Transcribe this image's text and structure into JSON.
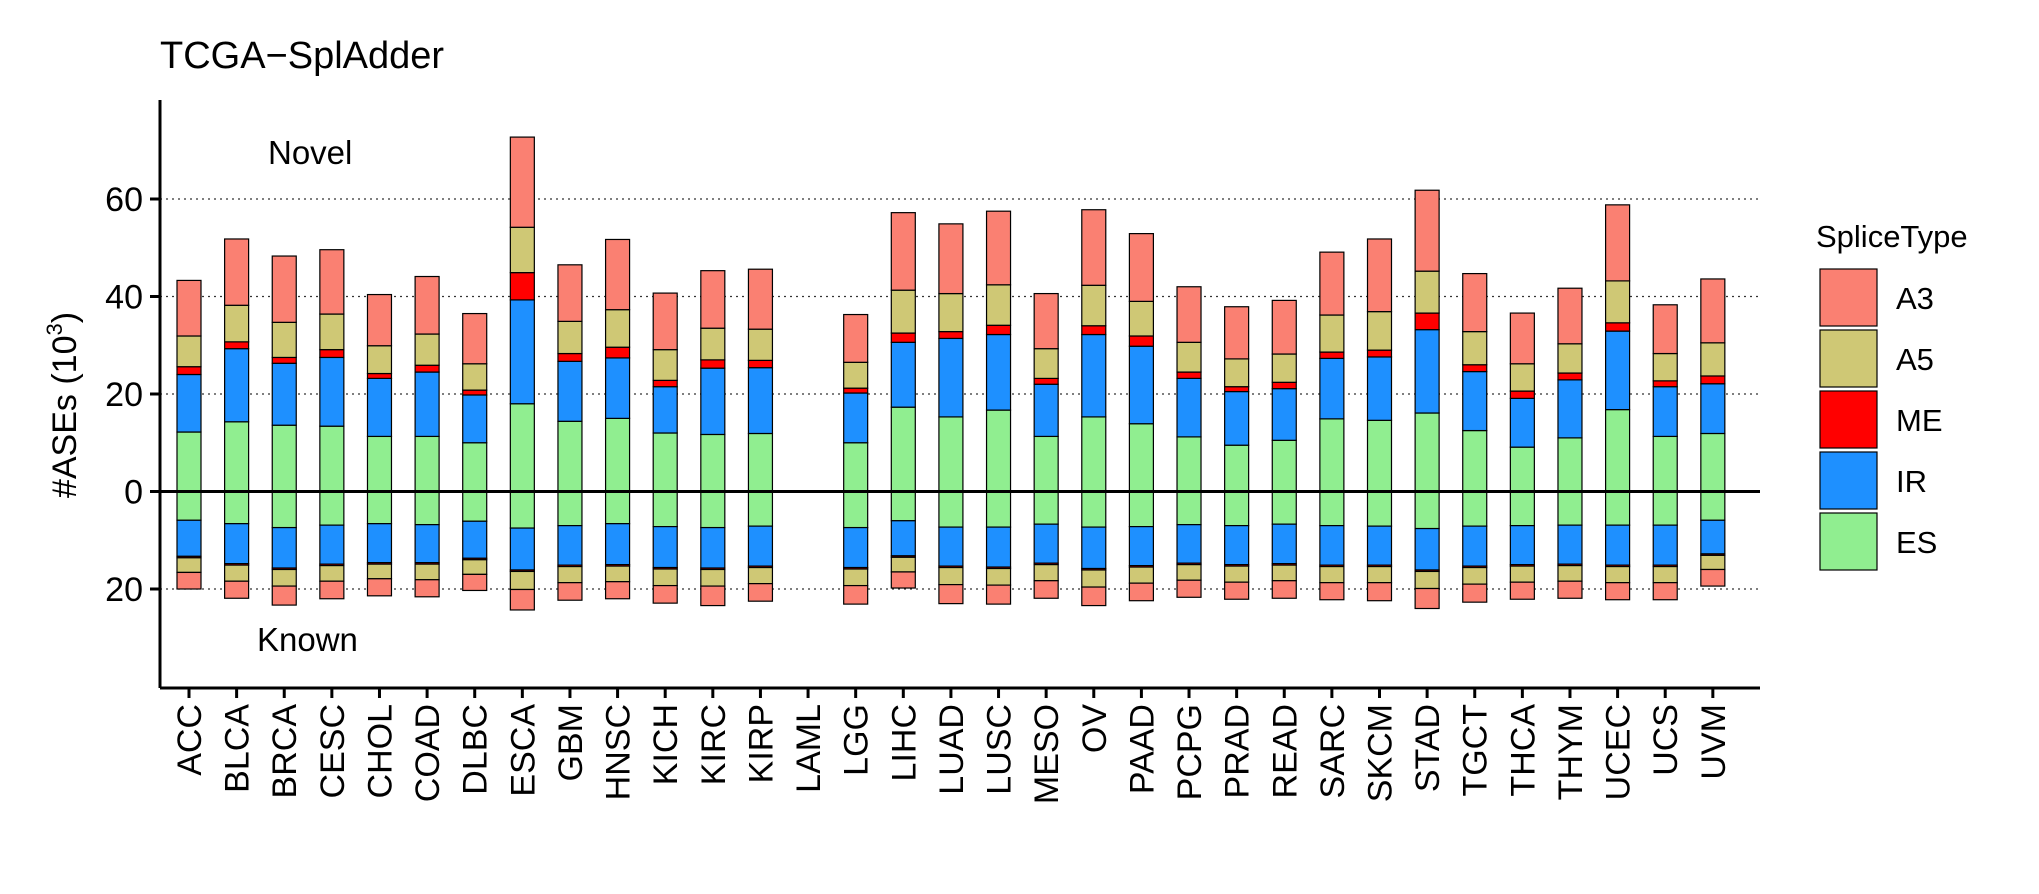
{
  "chart_data": {
    "type": "bar",
    "subtype": "stacked-diverging",
    "title": "TCGA−SplAdder",
    "ylabel": "#ASEs (10³)",
    "ylabel_base": "#ASEs (10",
    "ylabel_exp": "3",
    "ylabel_close": ")",
    "ylim": [
      -40,
      80
    ],
    "ytick_values": [
      -20,
      0,
      20,
      40,
      60
    ],
    "ytick_labels": [
      "20",
      "0",
      "20",
      "40",
      "60"
    ],
    "grid": "horizontal dotted at y ticks",
    "annotations": {
      "top": "Novel",
      "bottom": "Known"
    },
    "legend": {
      "title": "SpliceType",
      "position": "right",
      "items": [
        {
          "name": "A3",
          "color": "#FA8072"
        },
        {
          "name": "A5",
          "color": "#CFC875"
        },
        {
          "name": "ME",
          "color": "#FF0000"
        },
        {
          "name": "IR",
          "color": "#1E90FF"
        },
        {
          "name": "ES",
          "color": "#90EE90"
        }
      ]
    },
    "stack_order_from_zero": [
      "ES",
      "IR",
      "ME",
      "A5",
      "A3"
    ],
    "categories": [
      "ACC",
      "BLCA",
      "BRCA",
      "CESC",
      "CHOL",
      "COAD",
      "DLBC",
      "ESCA",
      "GBM",
      "HNSC",
      "KICH",
      "KIRC",
      "KIRP",
      "LAML",
      "LGG",
      "LIHC",
      "LUAD",
      "LUSC",
      "MESO",
      "OV",
      "PAAD",
      "PCPG",
      "PRAD",
      "READ",
      "SARC",
      "SKCM",
      "STAD",
      "TGCT",
      "THCA",
      "THYM",
      "UCEC",
      "UCS",
      "UVM"
    ],
    "novel_series": [
      {
        "name": "ES",
        "values": [
          12.2,
          14.3,
          13.6,
          13.4,
          11.3,
          11.3,
          10.0,
          18.0,
          14.4,
          15.0,
          12.0,
          11.7,
          11.9,
          0,
          10.0,
          17.3,
          15.3,
          16.7,
          11.3,
          15.3,
          13.9,
          11.2,
          9.5,
          10.5,
          14.9,
          14.6,
          16.1,
          12.5,
          9.1,
          11.0,
          16.8,
          11.3,
          11.9
        ]
      },
      {
        "name": "IR",
        "values": [
          11.8,
          15.0,
          12.7,
          14.1,
          11.9,
          13.2,
          9.8,
          21.3,
          12.3,
          12.4,
          9.5,
          13.6,
          13.5,
          0,
          10.2,
          13.3,
          16.1,
          15.5,
          10.7,
          16.9,
          15.9,
          12.0,
          11.0,
          10.6,
          12.4,
          13.0,
          17.1,
          12.1,
          10.0,
          11.9,
          16.1,
          10.2,
          10.2
        ]
      },
      {
        "name": "ME",
        "values": [
          1.6,
          1.4,
          1.2,
          1.6,
          1.0,
          1.4,
          1.0,
          5.6,
          1.6,
          2.2,
          1.3,
          1.7,
          1.5,
          0,
          1.0,
          1.9,
          1.4,
          1.9,
          1.2,
          1.8,
          2.1,
          1.3,
          1.0,
          1.3,
          1.3,
          1.4,
          3.4,
          1.4,
          1.5,
          1.4,
          1.7,
          1.2,
          1.6
        ]
      },
      {
        "name": "A5",
        "values": [
          6.3,
          7.5,
          7.2,
          7.3,
          5.7,
          6.4,
          5.4,
          9.3,
          6.6,
          7.7,
          6.3,
          6.5,
          6.4,
          0,
          5.3,
          8.8,
          7.8,
          8.3,
          6.1,
          8.3,
          7.1,
          6.1,
          5.7,
          5.8,
          7.6,
          7.9,
          8.6,
          6.8,
          5.6,
          6.0,
          8.6,
          5.6,
          6.8
        ]
      },
      {
        "name": "A3",
        "values": [
          11.4,
          13.6,
          13.6,
          13.2,
          10.5,
          11.8,
          10.3,
          18.5,
          11.6,
          14.4,
          11.6,
          11.8,
          12.3,
          0,
          9.8,
          15.9,
          14.3,
          15.1,
          11.3,
          15.5,
          13.9,
          11.4,
          10.7,
          11.0,
          12.9,
          14.9,
          16.6,
          11.9,
          10.4,
          11.4,
          15.6,
          10.0,
          13.1
        ]
      }
    ],
    "known_series": [
      {
        "name": "ES",
        "values": [
          5.9,
          6.6,
          7.4,
          6.9,
          6.6,
          6.8,
          6.1,
          7.5,
          7.0,
          6.6,
          7.2,
          7.4,
          7.1,
          0,
          7.4,
          6.0,
          7.3,
          7.3,
          6.7,
          7.3,
          7.2,
          6.8,
          7.0,
          6.7,
          7.0,
          7.1,
          7.6,
          7.1,
          7.0,
          6.9,
          6.9,
          6.9,
          5.9
        ]
      },
      {
        "name": "IR",
        "values": [
          7.4,
          8.2,
          8.3,
          8.0,
          8.0,
          7.8,
          7.6,
          8.6,
          8.1,
          8.4,
          8.4,
          8.3,
          8.2,
          0,
          8.2,
          7.2,
          8.0,
          8.2,
          8.0,
          8.5,
          8.0,
          7.9,
          8.0,
          8.1,
          8.1,
          8.0,
          8.5,
          8.2,
          8.0,
          8.0,
          8.2,
          8.2,
          6.9
        ]
      },
      {
        "name": "ME",
        "values": [
          0.3,
          0.3,
          0.3,
          0.3,
          0.3,
          0.3,
          0.3,
          0.3,
          0.3,
          0.3,
          0.3,
          0.3,
          0.3,
          0,
          0.3,
          0.3,
          0.3,
          0.3,
          0.3,
          0.3,
          0.3,
          0.3,
          0.3,
          0.3,
          0.3,
          0.3,
          0.3,
          0.3,
          0.3,
          0.3,
          0.3,
          0.3,
          0.3
        ]
      },
      {
        "name": "A5",
        "values": [
          3.0,
          3.3,
          3.4,
          3.2,
          3.0,
          3.2,
          3.0,
          3.7,
          3.3,
          3.2,
          3.4,
          3.4,
          3.3,
          0,
          3.4,
          3.0,
          3.5,
          3.4,
          3.3,
          3.5,
          3.3,
          3.2,
          3.3,
          3.2,
          3.3,
          3.3,
          3.5,
          3.4,
          3.3,
          3.2,
          3.3,
          3.3,
          2.9
        ]
      },
      {
        "name": "A3",
        "values": [
          3.4,
          3.5,
          3.9,
          3.6,
          3.5,
          3.5,
          3.3,
          4.2,
          3.6,
          3.5,
          3.6,
          4.0,
          3.6,
          0,
          3.8,
          3.3,
          3.9,
          3.9,
          3.6,
          3.8,
          3.6,
          3.5,
          3.5,
          3.6,
          3.5,
          3.7,
          4.1,
          3.7,
          3.5,
          3.5,
          3.5,
          3.5,
          3.4
        ]
      }
    ]
  }
}
